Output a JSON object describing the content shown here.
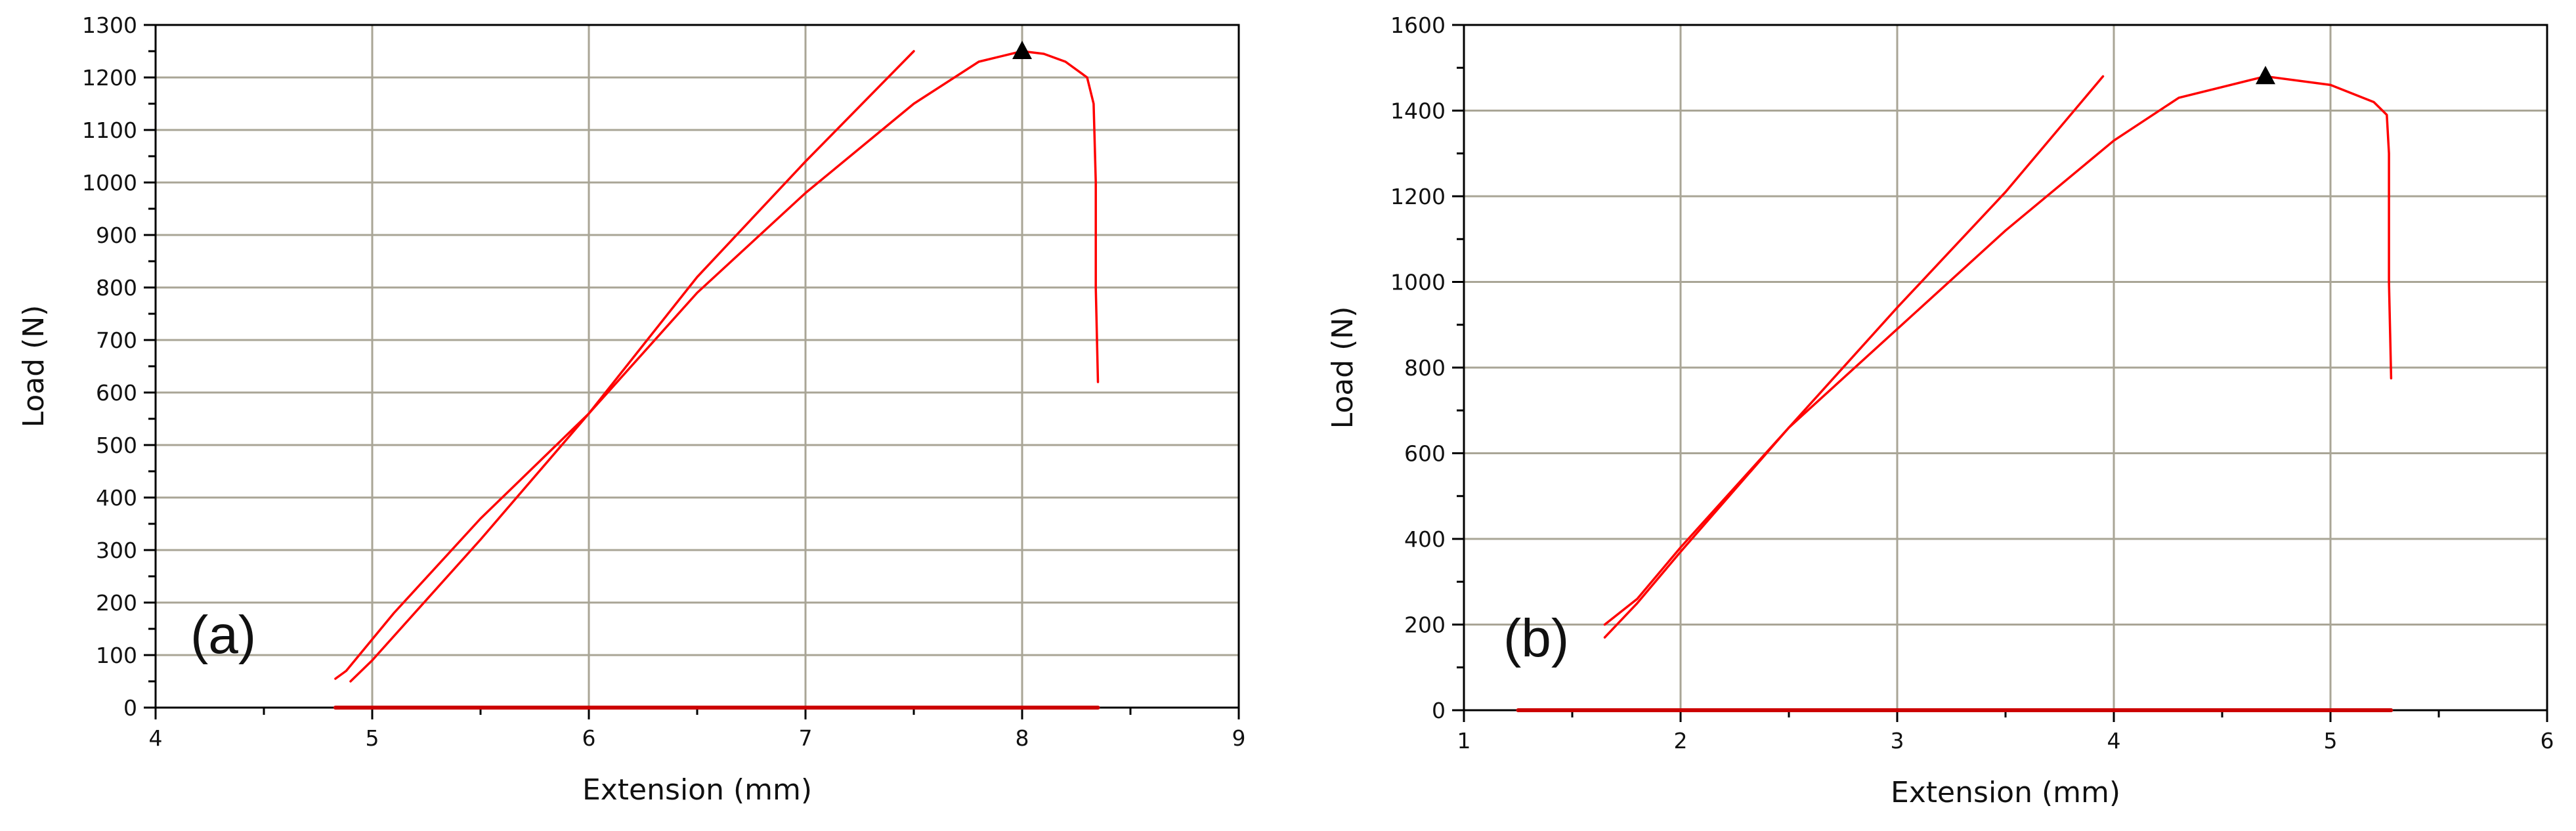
{
  "chart_data": [
    {
      "type": "line",
      "panel_label": "(a)",
      "xlabel": "Extension (mm)",
      "ylabel": "Load (N)",
      "xlim": [
        4,
        9
      ],
      "ylim": [
        0,
        1300
      ],
      "x_ticks": [
        4,
        5,
        6,
        7,
        8,
        9
      ],
      "y_ticks": [
        0,
        100,
        200,
        300,
        400,
        500,
        600,
        700,
        800,
        900,
        1000,
        1100,
        1200,
        1300
      ],
      "grid": true,
      "peak_marker": {
        "x": 8.0,
        "y": 1250
      },
      "series": [
        {
          "color": "#ff0000",
          "points": [
            [
              4.83,
              55
            ],
            [
              4.88,
              70
            ],
            [
              5.1,
              180
            ],
            [
              5.5,
              360
            ],
            [
              6.0,
              560
            ],
            [
              6.5,
              790
            ],
            [
              7.0,
              980
            ],
            [
              7.5,
              1150
            ],
            [
              7.8,
              1230
            ],
            [
              8.0,
              1250
            ],
            [
              8.1,
              1245
            ],
            [
              8.2,
              1230
            ],
            [
              8.3,
              1200
            ],
            [
              8.33,
              1150
            ],
            [
              8.34,
              1000
            ],
            [
              8.34,
              800
            ],
            [
              8.35,
              620
            ]
          ]
        },
        {
          "color": "#ff0000",
          "points": [
            [
              4.9,
              50
            ],
            [
              5.0,
              90
            ],
            [
              5.5,
              320
            ],
            [
              6.0,
              560
            ],
            [
              6.5,
              820
            ],
            [
              7.0,
              1040
            ],
            [
              7.5,
              1250
            ]
          ]
        },
        {
          "color": "#cc0000",
          "points": [
            [
              4.83,
              0
            ],
            [
              8.35,
              0
            ]
          ]
        }
      ]
    },
    {
      "type": "line",
      "panel_label": "(b)",
      "xlabel": "Extension (mm)",
      "ylabel": "Load (N)",
      "xlim": [
        1,
        6
      ],
      "ylim": [
        0,
        1600
      ],
      "x_ticks": [
        1,
        2,
        3,
        4,
        5,
        6
      ],
      "y_ticks": [
        0,
        200,
        400,
        600,
        800,
        1000,
        1200,
        1400,
        1600
      ],
      "grid": true,
      "peak_marker": {
        "x": 4.7,
        "y": 1480
      },
      "series": [
        {
          "color": "#ff0000",
          "points": [
            [
              1.65,
              200
            ],
            [
              1.8,
              260
            ],
            [
              2.0,
              380
            ],
            [
              2.5,
              660
            ],
            [
              3.0,
              890
            ],
            [
              3.5,
              1120
            ],
            [
              4.0,
              1330
            ],
            [
              4.3,
              1430
            ],
            [
              4.7,
              1480
            ],
            [
              5.0,
              1460
            ],
            [
              5.2,
              1420
            ],
            [
              5.26,
              1390
            ],
            [
              5.27,
              1300
            ],
            [
              5.27,
              1000
            ],
            [
              5.28,
              775
            ]
          ]
        },
        {
          "color": "#ff0000",
          "points": [
            [
              1.65,
              170
            ],
            [
              1.8,
              250
            ],
            [
              2.0,
              370
            ],
            [
              2.5,
              660
            ],
            [
              3.0,
              940
            ],
            [
              3.5,
              1210
            ],
            [
              3.95,
              1480
            ]
          ]
        },
        {
          "color": "#cc0000",
          "points": [
            [
              1.25,
              0
            ],
            [
              5.28,
              0
            ]
          ]
        }
      ]
    }
  ]
}
